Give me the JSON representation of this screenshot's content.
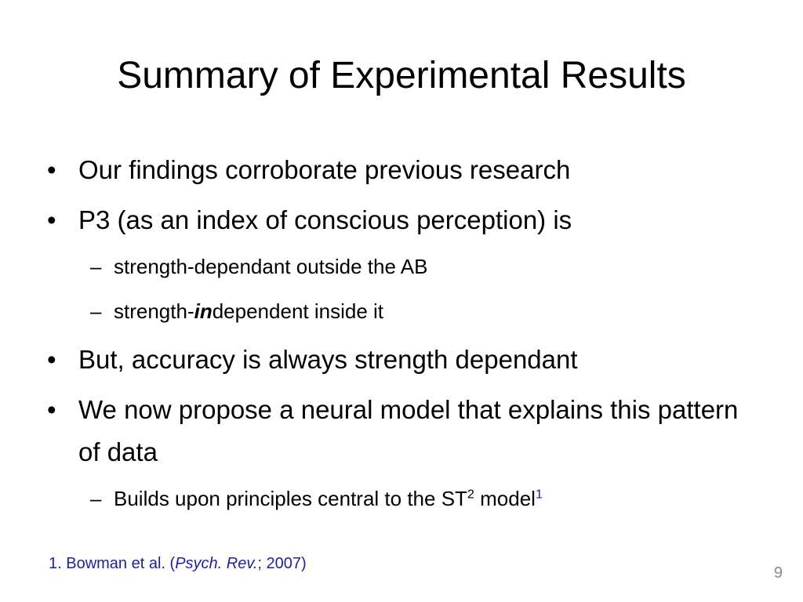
{
  "title": "Summary of Experimental Results",
  "items": [
    {
      "marker": "•",
      "parts": [
        {
          "text": "Our findings corroborate previous research"
        }
      ]
    },
    {
      "marker": "•",
      "parts": [
        {
          "text": "P3 (as an index of conscious perception) is"
        }
      ],
      "subitems": [
        {
          "marker": "–",
          "parts": [
            {
              "text": "strength-dependant outside the AB"
            }
          ]
        },
        {
          "marker": "–",
          "parts": [
            {
              "text": "strength-"
            },
            {
              "text": "in",
              "style": "bold-italic"
            },
            {
              "text": "dependent inside it"
            }
          ]
        }
      ]
    },
    {
      "marker": "•",
      "parts": [
        {
          "text": "But, accuracy is always strength dependant"
        }
      ]
    },
    {
      "marker": "•",
      "parts": [
        {
          "text": "We now propose a neural model that explains this pattern of data"
        }
      ],
      "subitems": [
        {
          "marker": "–",
          "parts": [
            {
              "text": "Builds upon principles central to the ST"
            },
            {
              "text": "2",
              "style": "superscript"
            },
            {
              "text": " model"
            },
            {
              "text": "1",
              "style": "superscript-link"
            }
          ]
        }
      ]
    }
  ],
  "footnote": {
    "parts": [
      {
        "text": "1. Bowman et al. ("
      },
      {
        "text": "Psych. Rev.",
        "style": "italic"
      },
      {
        "text": "; 2007)"
      }
    ]
  },
  "page_number": "9"
}
